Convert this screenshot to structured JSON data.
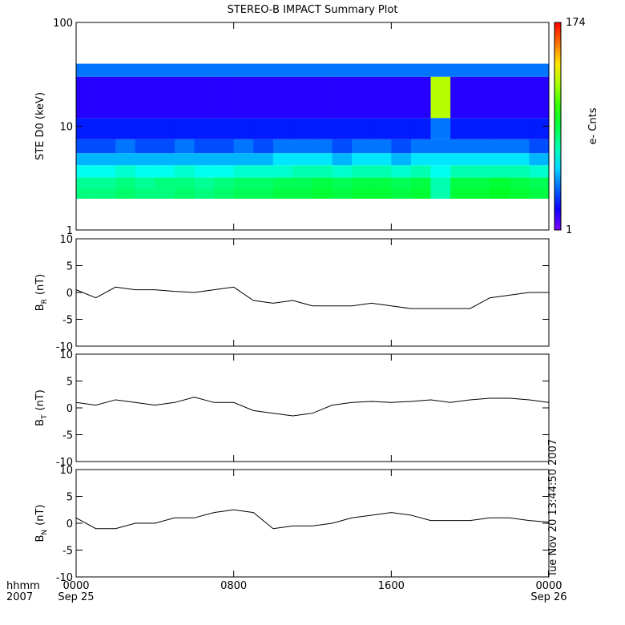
{
  "chart_data": [
    {
      "type": "heatmap",
      "title": "STEREO-B IMPACT Summary Plot",
      "ylabel": "STE D0 (keV)",
      "yscale": "log",
      "ylim": [
        1,
        100
      ],
      "yticks": [
        1,
        10,
        100
      ],
      "colormap": "rainbow",
      "zscale": "log",
      "zlim": [
        1,
        174
      ],
      "colorbar_label": "e- Cnts",
      "x_edges": [
        0,
        1,
        2,
        3,
        4,
        5,
        6,
        7,
        8,
        9,
        10,
        11,
        12,
        13,
        14,
        15,
        16,
        17,
        18,
        19,
        20,
        21,
        22,
        23,
        24
      ],
      "y_edges": [
        2,
        2.5,
        3.2,
        4.2,
        5.5,
        7.5,
        12,
        30,
        40
      ],
      "values": [
        [
          10,
          10,
          11,
          10,
          10,
          11,
          10,
          11,
          12,
          12,
          13,
          13,
          14,
          13,
          14,
          14,
          13,
          14,
          8,
          14,
          14,
          15,
          14,
          13
        ],
        [
          9,
          9,
          10,
          9,
          10,
          10,
          9,
          10,
          11,
          11,
          12,
          12,
          13,
          12,
          13,
          13,
          12,
          13,
          8,
          13,
          13,
          14,
          13,
          12
        ],
        [
          6,
          6,
          7,
          6,
          6,
          7,
          6,
          6,
          7,
          7,
          7,
          8,
          8,
          7,
          8,
          8,
          7,
          8,
          6,
          8,
          8,
          8,
          8,
          7
        ],
        [
          4,
          4,
          4,
          4,
          4,
          4,
          4,
          4,
          4,
          4,
          5,
          5,
          5,
          4,
          5,
          5,
          4,
          5,
          5,
          5,
          5,
          5,
          5,
          4
        ],
        [
          2.5,
          2.5,
          3,
          2.5,
          2.5,
          3,
          2.5,
          2.5,
          3,
          2.5,
          3,
          3,
          3,
          2.5,
          3,
          3,
          2.5,
          3,
          3,
          3,
          3,
          3,
          3,
          2.5
        ],
        [
          2,
          2,
          2,
          2,
          2,
          2,
          2,
          2,
          2,
          2,
          2,
          2,
          2,
          2,
          2,
          2,
          2,
          2,
          3,
          2,
          2,
          2,
          2,
          2
        ],
        [
          1.5,
          1.5,
          1.5,
          1.5,
          1.5,
          1.5,
          1.5,
          1.5,
          1.5,
          1.5,
          1.5,
          1.5,
          1.5,
          1.5,
          1.5,
          1.5,
          1.5,
          1.5,
          40,
          1.5,
          1.5,
          1.5,
          1.5,
          1.5
        ],
        [
          3,
          3,
          3,
          3,
          3,
          3,
          3,
          3,
          3,
          3,
          3,
          3,
          3,
          3,
          3,
          3,
          3,
          3,
          3,
          3,
          3,
          3,
          3,
          3
        ]
      ]
    },
    {
      "type": "line",
      "ylabel_base": "B",
      "ylabel_sub": "R",
      "ylabel_unit": "(nT)",
      "color": "#000000",
      "ylim": [
        -10,
        10
      ],
      "yticks": [
        -10,
        -5,
        0,
        5,
        10
      ],
      "x": [
        0,
        1,
        2,
        3,
        4,
        5,
        6,
        7,
        8,
        9,
        10,
        11,
        12,
        13,
        14,
        15,
        16,
        17,
        18,
        19,
        20,
        21,
        22,
        23,
        24
      ],
      "values": [
        0.5,
        -1,
        1,
        0.5,
        0.5,
        0.2,
        0,
        0.5,
        1,
        -1.5,
        -2,
        -1.5,
        -2.5,
        -2.5,
        -2.5,
        -2,
        -2.5,
        -3,
        -3,
        -3,
        -3,
        -1,
        -0.5,
        0,
        0
      ]
    },
    {
      "type": "line",
      "ylabel_base": "B",
      "ylabel_sub": "T",
      "ylabel_unit": "(nT)",
      "color": "#000000",
      "ylim": [
        -10,
        10
      ],
      "yticks": [
        -10,
        -5,
        0,
        5,
        10
      ],
      "x": [
        0,
        1,
        2,
        3,
        4,
        5,
        6,
        7,
        8,
        9,
        10,
        11,
        12,
        13,
        14,
        15,
        16,
        17,
        18,
        19,
        20,
        21,
        22,
        23,
        24
      ],
      "values": [
        1,
        0.5,
        1.5,
        1,
        0.5,
        1,
        2,
        1,
        1,
        -0.5,
        -1,
        -1.5,
        -1,
        0.5,
        1,
        1.2,
        1,
        1.2,
        1.5,
        1,
        1.5,
        1.8,
        1.8,
        1.5,
        1
      ]
    },
    {
      "type": "line",
      "ylabel_base": "B",
      "ylabel_sub": "N",
      "ylabel_unit": "(nT)",
      "color": "#000000",
      "ylim": [
        -10,
        10
      ],
      "yticks": [
        -10,
        -5,
        0,
        5,
        10
      ],
      "x": [
        0,
        1,
        2,
        3,
        4,
        5,
        6,
        7,
        8,
        9,
        10,
        11,
        12,
        13,
        14,
        15,
        16,
        17,
        18,
        19,
        20,
        21,
        22,
        23,
        24
      ],
      "values": [
        1,
        -1,
        -1,
        0,
        0,
        1,
        1,
        2,
        2.5,
        2,
        -1,
        -0.5,
        -0.5,
        0,
        1,
        1.5,
        2,
        1.5,
        0.5,
        0.5,
        0.5,
        1,
        1,
        0.5,
        0.2
      ],
      "xlim": [
        0,
        24
      ],
      "xticks": [
        {
          "value": 0,
          "label": "0000"
        },
        {
          "value": 8,
          "label": "0800"
        },
        {
          "value": 16,
          "label": "1600"
        },
        {
          "value": 24,
          "label": "0000"
        }
      ],
      "date_labels": [
        {
          "value": 0,
          "label": "Sep 25"
        },
        {
          "value": 24,
          "label": "Sep 26"
        }
      ],
      "x_axis_labels": [
        "hhmm",
        "2007"
      ],
      "timestamp": "Tue Nov 20 13:44:50 2007"
    }
  ]
}
